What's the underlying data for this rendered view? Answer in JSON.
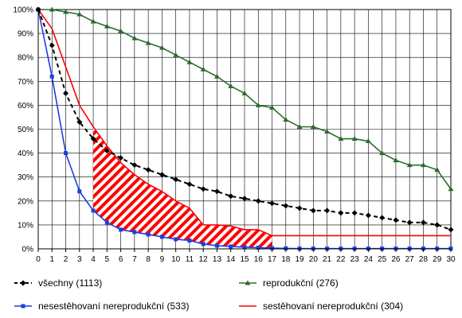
{
  "chart_data": {
    "type": "line",
    "title": "",
    "xlabel": "",
    "ylabel": "",
    "x": [
      0,
      1,
      2,
      3,
      4,
      5,
      6,
      7,
      8,
      9,
      10,
      11,
      12,
      13,
      14,
      15,
      16,
      17,
      18,
      19,
      20,
      21,
      22,
      23,
      24,
      25,
      26,
      27,
      28,
      29,
      30
    ],
    "xlim": [
      0,
      30
    ],
    "ylim": [
      0,
      100
    ],
    "y_ticks": [
      0,
      10,
      20,
      30,
      40,
      50,
      60,
      70,
      80,
      90,
      100
    ],
    "y_tick_suffix": "%",
    "grid": true,
    "legend_position": "bottom",
    "series": [
      {
        "name": "všechny (1113)",
        "color": "#000000",
        "style": "dashed",
        "marker": "diamond",
        "values": [
          100,
          85,
          65,
          53,
          46,
          41,
          38,
          35,
          33,
          31,
          29,
          27,
          25,
          24,
          22,
          21,
          20,
          19,
          18,
          17,
          16,
          16,
          15,
          15,
          14,
          13,
          12,
          11,
          11,
          10,
          8
        ]
      },
      {
        "name": "reprodukční (276)",
        "color": "#2e6b2e",
        "style": "solid",
        "marker": "triangle",
        "values": [
          100,
          100,
          99,
          98,
          95,
          93,
          91,
          88,
          86,
          84,
          81,
          78,
          75,
          72,
          68,
          65,
          60,
          59,
          54,
          51,
          51,
          49,
          46,
          46,
          45,
          40,
          37,
          35,
          35,
          33,
          25
        ]
      },
      {
        "name": "nesestěhovaní nereprodukční (533)",
        "color": "#1a3fe0",
        "style": "solid",
        "marker": "square",
        "values": [
          100,
          72,
          40,
          24,
          16,
          11,
          8,
          7,
          6,
          5,
          4,
          3.5,
          2,
          1.3,
          1,
          0.7,
          0.5,
          0.3,
          0.2,
          0.1,
          0.1,
          0.1,
          0.1,
          0.1,
          0.1,
          0.1,
          0.1,
          0.1,
          0.1,
          0.1,
          0.1
        ]
      },
      {
        "name": "sestěhovaní nereprodukční (304)",
        "color": "#ff0000",
        "style": "solid",
        "marker": "none",
        "values": [
          100,
          92,
          76,
          60,
          51,
          43,
          36,
          31,
          27,
          24,
          20,
          17,
          10,
          10,
          9.5,
          8,
          8,
          5.5,
          5.5,
          5.5,
          5.5,
          5.5,
          5.5,
          5.5,
          5.5,
          5.5,
          5.5,
          5.5,
          5.5,
          5.5,
          5.5
        ]
      }
    ],
    "shaded_region": {
      "description_source": "hatched area between red and blue series",
      "x_from": 4,
      "x_to": 17,
      "color": "#ff0000"
    }
  }
}
